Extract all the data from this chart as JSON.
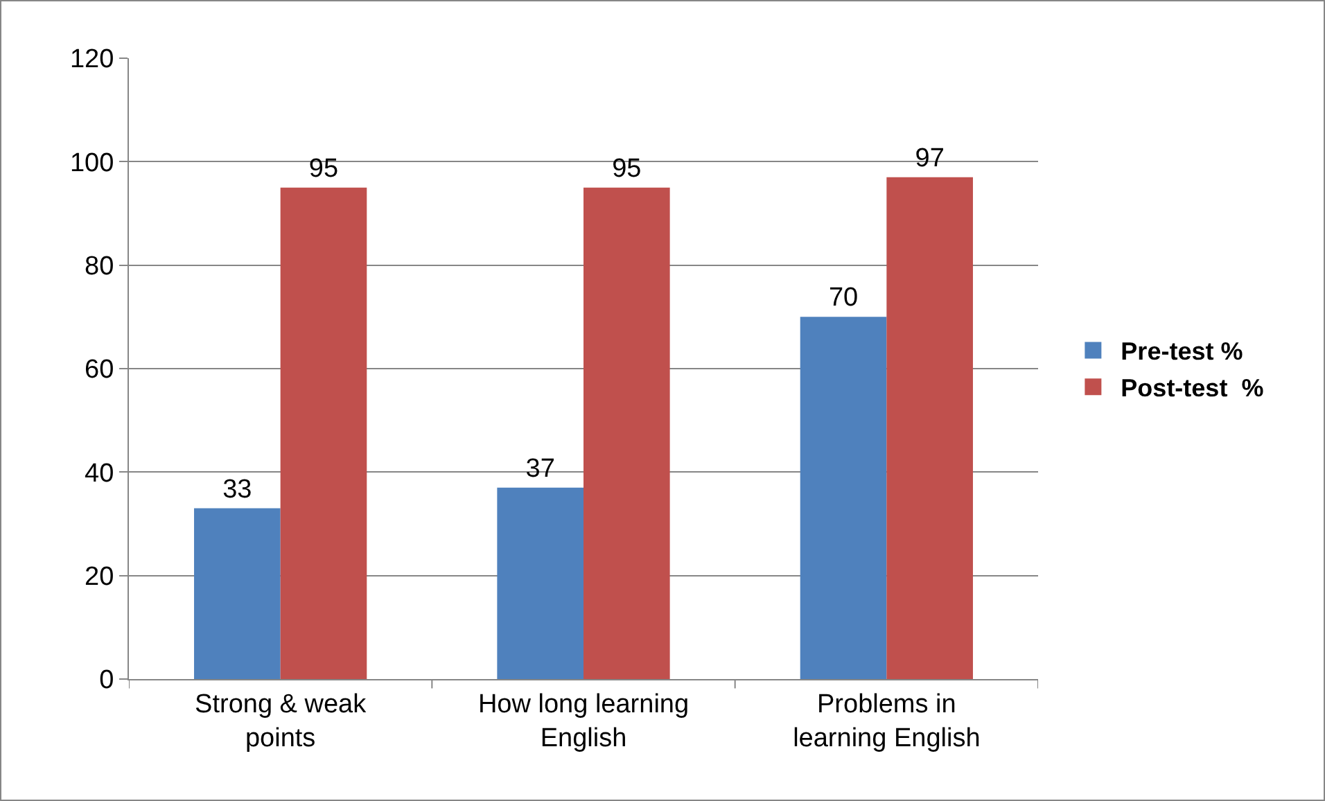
{
  "chart_data": {
    "type": "bar",
    "categories": [
      "Strong & weak points",
      "How long learning English",
      "Problems in learning English"
    ],
    "series": [
      {
        "name": "Pre-test %",
        "color": "#4f81bd",
        "values": [
          33,
          37,
          70
        ]
      },
      {
        "name": "Post-test  %",
        "color": "#c0504d",
        "values": [
          95,
          95,
          97
        ]
      }
    ],
    "ylim": [
      0,
      120
    ],
    "yticks": [
      0,
      20,
      40,
      60,
      80,
      100,
      120
    ],
    "grid": "y",
    "legend": "right",
    "data_labels": true
  }
}
